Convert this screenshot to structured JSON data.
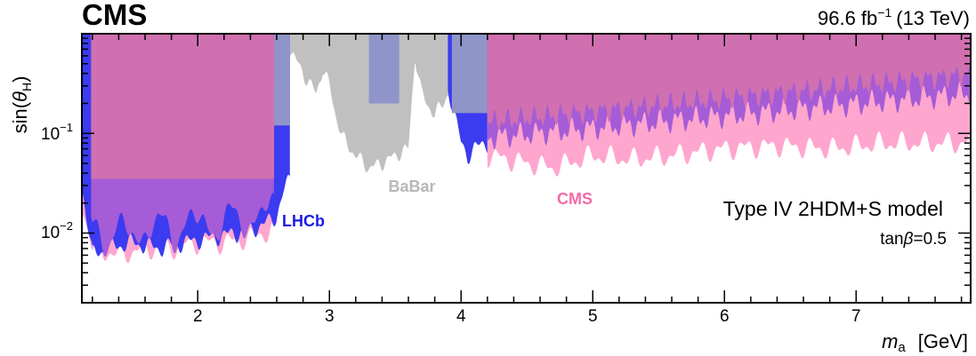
{
  "header": {
    "experiment": "CMS",
    "lumi": "96.6 fb",
    "lumi_exp": "−1",
    "energy": "(13 TeV)"
  },
  "chart_data": {
    "type": "area",
    "title": "",
    "xlabel_var": "m",
    "xlabel_sub": "a",
    "xlabel_unit": "[GeV]",
    "ylabel_pre": "sin(",
    "ylabel_theta": "θ",
    "ylabel_sub": "H",
    "ylabel_post": ")",
    "xlim": [
      1.12,
      7.87
    ],
    "ylim": [
      0.002,
      1.0
    ],
    "yscale": "log",
    "grid": false,
    "x_ticks": [
      {
        "value": 2,
        "label": "2"
      },
      {
        "value": 3,
        "label": "3"
      },
      {
        "value": 4,
        "label": "4"
      },
      {
        "value": 5,
        "label": "5"
      },
      {
        "value": 6,
        "label": "6"
      },
      {
        "value": 7,
        "label": "7"
      }
    ],
    "y_ticks": [
      {
        "value": 0.1,
        "base": "10",
        "exp": "−1"
      },
      {
        "value": 0.01,
        "base": "10",
        "exp": "−2"
      }
    ],
    "model_label": "Type IV 2HDM+S model",
    "tanbeta_pre": "tan",
    "tanbeta_sym": "β",
    "tanbeta_post": "=0.5",
    "colors": {
      "babar": "#c0c0c0",
      "lhcb": "#3b3bf0",
      "cms_expected": "#ffa6cf",
      "cms_observed": "#a65cd6",
      "overlap_blue": "#8f95c8",
      "overlap_cms": "#d070b0"
    },
    "series": [
      {
        "name": "BaBar",
        "label_color": "#b8b8b8",
        "x": [
          1.12,
          1.2,
          2.6,
          2.7,
          2.8,
          2.9,
          2.95,
          3.0,
          3.05,
          3.1,
          3.2,
          3.3,
          3.4,
          3.5,
          3.6,
          3.65,
          3.7,
          3.8,
          3.9,
          4.0,
          4.1,
          4.2
        ],
        "y": [
          1.0,
          1.0,
          1.0,
          0.7,
          0.4,
          0.25,
          0.45,
          0.3,
          0.15,
          0.09,
          0.06,
          0.045,
          0.05,
          0.06,
          0.07,
          0.6,
          0.25,
          0.15,
          0.25,
          0.15,
          0.1,
          0.08
        ]
      },
      {
        "name": "LHCb",
        "label_color": "#1a1ae6",
        "x": [
          1.12,
          1.2,
          1.3,
          1.5,
          1.7,
          1.9,
          2.1,
          2.3,
          2.5,
          2.6,
          2.65,
          2.7,
          3.9,
          3.95,
          4.0,
          4.05,
          4.1,
          4.2
        ],
        "y": [
          0.03,
          0.006,
          0.007,
          0.008,
          0.007,
          0.008,
          0.009,
          0.01,
          0.012,
          0.015,
          0.025,
          0.035,
          0.3,
          0.15,
          0.08,
          0.06,
          0.07,
          0.08
        ]
      },
      {
        "name": "CMS",
        "label_color": "#f46aa8",
        "x": [
          1.12,
          1.2,
          1.4,
          1.6,
          1.8,
          2.0,
          2.2,
          2.4,
          2.6,
          4.2,
          4.5,
          4.7,
          5.0,
          5.3,
          5.6,
          6.0,
          6.4,
          6.8,
          7.2,
          7.5,
          7.87
        ],
        "y": [
          0.02,
          0.007,
          0.006,
          0.007,
          0.007,
          0.008,
          0.008,
          0.009,
          0.011,
          0.06,
          0.05,
          0.045,
          0.06,
          0.055,
          0.06,
          0.07,
          0.075,
          0.07,
          0.08,
          0.08,
          0.08
        ]
      }
    ]
  }
}
